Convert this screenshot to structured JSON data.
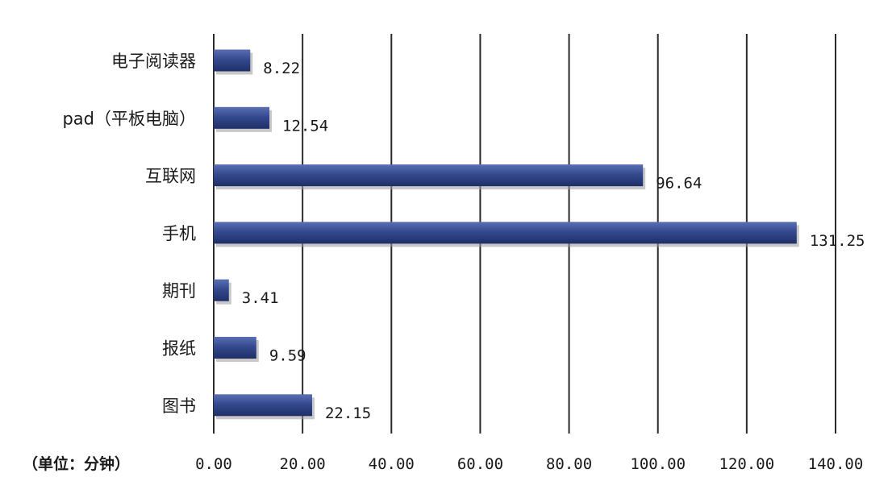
{
  "chart_data": {
    "type": "bar",
    "orientation": "horizontal",
    "unit_label": "（单位：分钟）",
    "categories": [
      "电子阅读器",
      "pad（平板电脑）",
      "互联网",
      "手机",
      "期刊",
      "报纸",
      "图书"
    ],
    "values": [
      8.22,
      12.54,
      96.64,
      131.25,
      3.41,
      9.59,
      22.15
    ],
    "value_labels": [
      "8.22",
      "12.54",
      "96.64",
      "131.25",
      "3.41",
      "9.59",
      "22.15"
    ],
    "x_ticks": [
      "0.00",
      "20.00",
      "40.00",
      "60.00",
      "80.00",
      "100.00",
      "120.00",
      "140.00"
    ],
    "xlim": [
      0,
      140
    ],
    "grid": true,
    "bar_color": "#34498f"
  }
}
